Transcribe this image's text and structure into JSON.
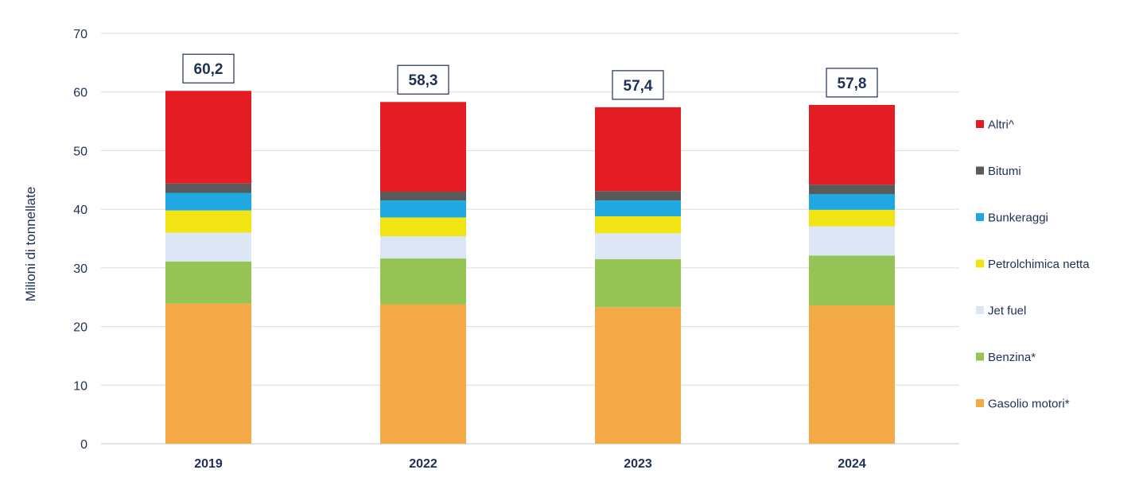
{
  "chart_data": {
    "type": "bar",
    "stacked": true,
    "title": "",
    "xlabel": "",
    "ylabel": "Milioni di tonnellate",
    "ylim": [
      0,
      70
    ],
    "yticks": [
      "0",
      "10",
      "20",
      "30",
      "40",
      "50",
      "60",
      "70"
    ],
    "grid": true,
    "legend_position": "right",
    "categories": [
      "2019",
      "2022",
      "2023",
      "2024"
    ],
    "totals": [
      "60,2",
      "58,3",
      "57,4",
      "57,8"
    ],
    "series": [
      {
        "name": "Gasolio motori*",
        "color": "#f4a947",
        "values": [
          23.9,
          23.8,
          23.3,
          23.6
        ]
      },
      {
        "name": "Benzina*",
        "color": "#96c454",
        "values": [
          7.2,
          7.8,
          8.2,
          8.5
        ]
      },
      {
        "name": "Jet fuel",
        "color": "#dce6f4",
        "values": [
          4.9,
          3.8,
          4.4,
          5.0
        ]
      },
      {
        "name": "Petrolchimica netta",
        "color": "#f0e414",
        "values": [
          3.8,
          3.2,
          2.9,
          2.8
        ]
      },
      {
        "name": "Bunkeraggi",
        "color": "#20a9e1",
        "values": [
          3.0,
          2.9,
          2.7,
          2.7
        ]
      },
      {
        "name": "Bitumi",
        "color": "#5a5a5a",
        "values": [
          1.6,
          1.5,
          1.6,
          1.6
        ]
      },
      {
        "name": "Altri^",
        "color": "#e31d23",
        "values": [
          15.8,
          15.3,
          14.3,
          13.6
        ]
      }
    ]
  }
}
